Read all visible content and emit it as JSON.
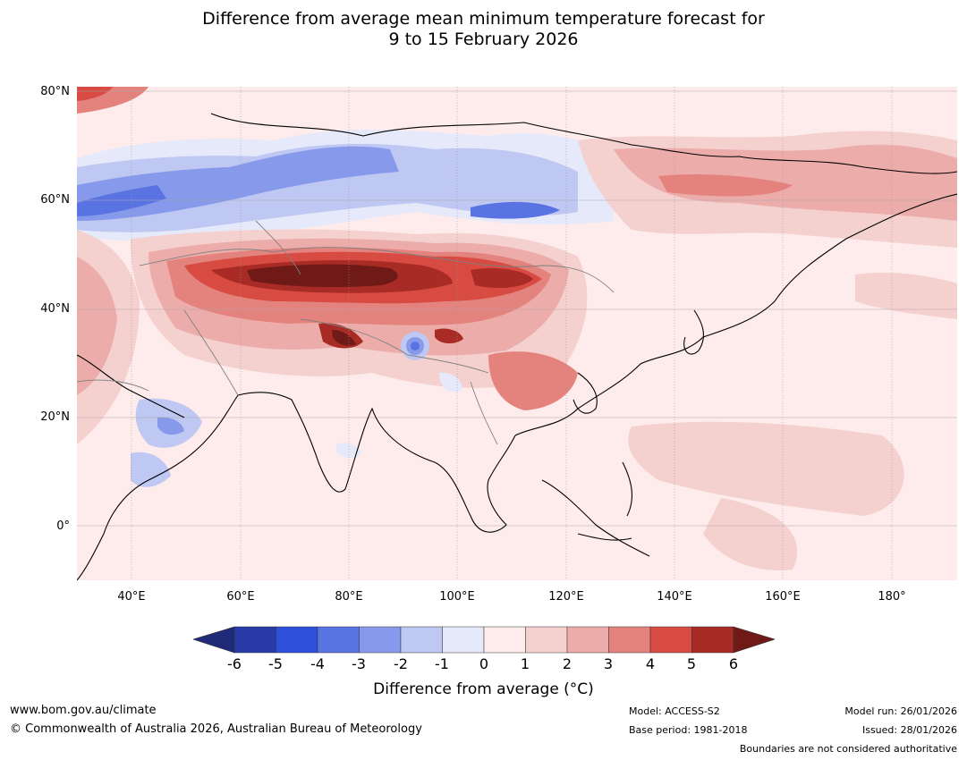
{
  "title": {
    "line1": "Difference from average mean minimum temperature forecast for",
    "line2": "9 to 15 February 2026"
  },
  "map": {
    "latitude_labels": [
      "80°N",
      "60°N",
      "40°N",
      "20°N",
      "0°"
    ],
    "longitude_labels": [
      "40°E",
      "60°E",
      "80°E",
      "100°E",
      "120°E",
      "140°E",
      "160°E",
      "180°"
    ]
  },
  "colorbar": {
    "tick_labels": [
      "-6",
      "-5",
      "-4",
      "-3",
      "-2",
      "-1",
      "0",
      "1",
      "2",
      "3",
      "4",
      "5",
      "6"
    ],
    "colors": {
      "lt_minus6": "#1f2a78",
      "m6_m5": "#283aa8",
      "m5_m4": "#2e4fdc",
      "m4_m3": "#5a73e3",
      "m3_m2": "#8799ea",
      "m2_m1": "#bfc7f3",
      "m1_0": "#e6e9fa",
      "0_1": "#fdeceb",
      "1_2": "#f4d1cf",
      "2_3": "#ecadaa",
      "3_4": "#e4827d",
      "4_5": "#d74b42",
      "5_6": "#a92b25",
      "gt_6": "#6f1a17"
    },
    "label": "Difference from average (°C)"
  },
  "footer": {
    "website": "www.bom.gov.au/climate",
    "copyright": "© Commonwealth of Australia 2026, Australian Bureau of Meteorology",
    "model": "Model: ACCESS-S2",
    "base_period": "Base period: 1981-2018",
    "model_run": "Model run: 26/01/2026",
    "issued": "Issued: 28/01/2026",
    "disclaimer": "Boundaries are not considered authoritative"
  }
}
